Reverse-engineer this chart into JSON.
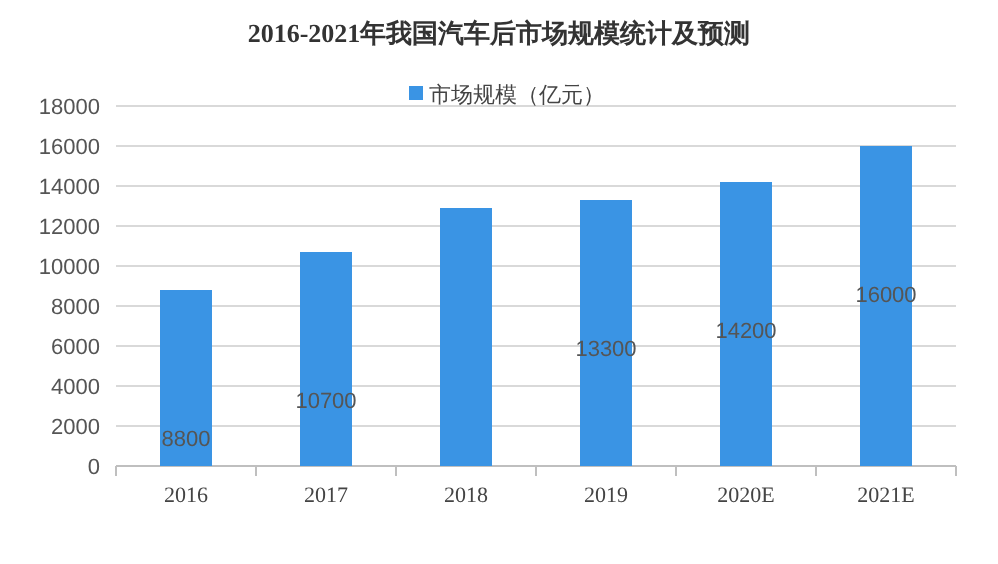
{
  "chart_data": {
    "type": "bar",
    "title": "2016-2021年我国汽车后市场规模统计及预测",
    "categories": [
      "2016",
      "2017",
      "2018",
      "2019",
      "2020E",
      "2021E"
    ],
    "series": [
      {
        "name": "市场规模（亿元）",
        "color": "#3a94e4",
        "values": [
          8800,
          10700,
          12900,
          13300,
          14200,
          16000
        ],
        "value_labels": [
          "8800",
          "10700",
          null,
          "13300",
          "14200",
          "16000"
        ]
      }
    ],
    "ylim": [
      0,
      18000
    ],
    "yticks": [
      0,
      2000,
      4000,
      6000,
      8000,
      10000,
      12000,
      14000,
      16000,
      18000
    ],
    "grid": "y",
    "legend": "top"
  }
}
